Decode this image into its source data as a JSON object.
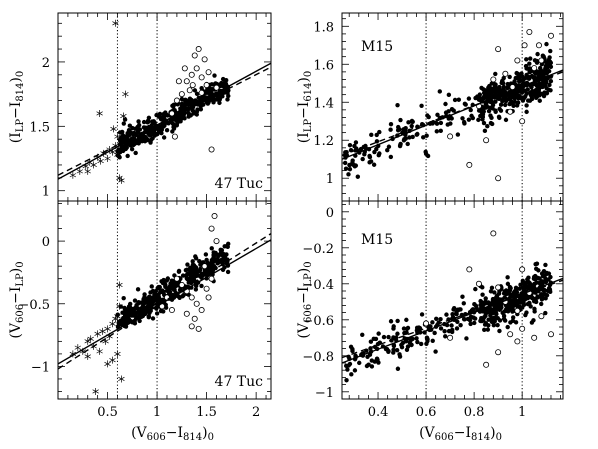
{
  "chart_data": [
    {
      "id": "tl",
      "type": "scatter",
      "annotation": "47 Tuc",
      "xlim": [
        0,
        2.15
      ],
      "ylim": [
        0.92,
        2.38
      ],
      "xticks": [
        0.5,
        1,
        1.5,
        2
      ],
      "yticks": [
        1,
        1.5,
        2
      ],
      "ylabel_main": "(I",
      "ylabel_sub1": "LP",
      "ylabel_mid": "−I",
      "ylabel_sub2": "814",
      "ylabel_end": ")",
      "ylabel_sub3": "0",
      "vlines": [
        0.6,
        1.0
      ],
      "fit_solid": [
        [
          0,
          1.09
        ],
        [
          2.15,
          1.99
        ]
      ],
      "fit_dashed": [
        [
          0,
          1.12
        ],
        [
          2.15,
          1.96
        ]
      ],
      "main": {
        "x0": 0.6,
        "x1": 1.72,
        "a": 1.09,
        "b": 0.42,
        "n": 420,
        "sd": 0.05,
        "seed": 11
      },
      "stars": [
        [
          0.15,
          1.12
        ],
        [
          0.22,
          1.15
        ],
        [
          0.28,
          1.19
        ],
        [
          0.32,
          1.22
        ],
        [
          0.36,
          1.2
        ],
        [
          0.4,
          1.26
        ],
        [
          0.43,
          1.23
        ],
        [
          0.46,
          1.29
        ],
        [
          0.5,
          1.25
        ],
        [
          0.52,
          1.32
        ],
        [
          0.55,
          1.3
        ],
        [
          0.58,
          1.35
        ],
        [
          0.6,
          1.42
        ],
        [
          0.56,
          1.48
        ],
        [
          0.62,
          1.1
        ],
        [
          0.66,
          1.58
        ],
        [
          0.42,
          1.6
        ],
        [
          0.58,
          2.3
        ],
        [
          0.68,
          1.75
        ],
        [
          0.64,
          1.08
        ],
        [
          0.3,
          1.15
        ],
        [
          0.6,
          1.28
        ]
      ],
      "open": [
        [
          1.25,
          1.75
        ],
        [
          1.3,
          1.85
        ],
        [
          1.35,
          1.9
        ],
        [
          1.38,
          2.05
        ],
        [
          1.4,
          1.95
        ],
        [
          1.42,
          2.1
        ],
        [
          1.45,
          1.88
        ],
        [
          1.48,
          2.02
        ],
        [
          1.5,
          1.82
        ],
        [
          1.33,
          1.78
        ],
        [
          1.28,
          1.95
        ],
        [
          1.52,
          1.92
        ],
        [
          1.2,
          1.7
        ],
        [
          1.6,
          1.8
        ],
        [
          1.55,
          1.32
        ],
        [
          1.15,
          1.6
        ],
        [
          1.22,
          1.85
        ],
        [
          1.45,
          1.76
        ],
        [
          1.36,
          1.82
        ],
        [
          1.18,
          1.42
        ]
      ]
    },
    {
      "id": "tr",
      "type": "scatter",
      "annotation": "M15",
      "xlim": [
        0.25,
        1.17
      ],
      "ylim": [
        0.88,
        1.87
      ],
      "xticks": [
        0.4,
        0.6,
        0.8,
        1
      ],
      "yticks": [
        1,
        1.2,
        1.4,
        1.6,
        1.8
      ],
      "ylabel_main": "(I",
      "ylabel_sub1": "LP",
      "ylabel_mid": "−I",
      "ylabel_sub2": "614",
      "ylabel_end": ")",
      "ylabel_sub3": "0",
      "vlines": [
        0.6,
        1.0
      ],
      "fit_solid": [
        [
          0.25,
          1.1
        ],
        [
          1.17,
          1.57
        ]
      ],
      "fit_dashed": [
        [
          0.25,
          1.12
        ],
        [
          1.17,
          1.56
        ]
      ],
      "main": {
        "x0": 0.26,
        "x1": 1.12,
        "a": 0.97,
        "b": 0.51,
        "n": 520,
        "sd": 0.055,
        "seed": 23,
        "dense_from": 0.82,
        "dense_frac": 0.55
      },
      "stars": [],
      "open": [
        [
          0.9,
          1.68
        ],
        [
          0.93,
          1.55
        ],
        [
          0.98,
          1.62
        ],
        [
          1.01,
          1.7
        ],
        [
          1.03,
          1.77
        ],
        [
          1.07,
          1.7
        ],
        [
          1.12,
          1.75
        ],
        [
          0.88,
          1.52
        ],
        [
          0.95,
          1.35
        ],
        [
          0.85,
          1.2
        ],
        [
          0.78,
          1.07
        ],
        [
          0.9,
          1.0
        ],
        [
          0.7,
          1.22
        ],
        [
          1.0,
          1.3
        ],
        [
          0.96,
          1.48
        ],
        [
          1.05,
          1.58
        ],
        [
          0.82,
          1.38
        ],
        [
          1.08,
          1.62
        ]
      ]
    },
    {
      "id": "bl",
      "type": "scatter",
      "annotation": "47 Tuc",
      "xlim": [
        0,
        2.15
      ],
      "ylim": [
        -1.26,
        0.32
      ],
      "xticks": [
        0.5,
        1,
        1.5,
        2
      ],
      "yticks": [
        -1,
        -0.5,
        0
      ],
      "xtick_labels": [
        "0.5",
        "1",
        "1.5",
        "2"
      ],
      "ytick_labels": [
        "−1",
        "−0.5",
        "0"
      ],
      "ylabel_main": "(V",
      "ylabel_sub1": "606",
      "ylabel_mid": "−I",
      "ylabel_sub2": "LP",
      "ylabel_end": ")",
      "ylabel_sub3": "0",
      "xlabel_main": "(V",
      "xlabel_sub1": "606",
      "xlabel_mid": "−I",
      "xlabel_sub2": "814",
      "xlabel_end": ")",
      "xlabel_sub3": "0",
      "vlines": [
        0.6,
        1.0
      ],
      "fit_solid": [
        [
          0,
          -0.98
        ],
        [
          2.15,
          0.01
        ]
      ],
      "fit_dashed": [
        [
          0,
          -1.02
        ],
        [
          2.15,
          0.06
        ]
      ],
      "main": {
        "x0": 0.6,
        "x1": 1.72,
        "a": -0.94,
        "b": 0.48,
        "n": 420,
        "sd": 0.055,
        "seed": 37
      },
      "stars": [
        [
          0.15,
          -0.9
        ],
        [
          0.2,
          -0.85
        ],
        [
          0.25,
          -0.88
        ],
        [
          0.3,
          -0.8
        ],
        [
          0.33,
          -0.78
        ],
        [
          0.36,
          -0.84
        ],
        [
          0.4,
          -0.74
        ],
        [
          0.42,
          -0.88
        ],
        [
          0.45,
          -0.72
        ],
        [
          0.48,
          -0.8
        ],
        [
          0.5,
          -0.7
        ],
        [
          0.52,
          -0.76
        ],
        [
          0.55,
          -0.66
        ],
        [
          0.58,
          -0.62
        ],
        [
          0.6,
          -0.6
        ],
        [
          0.62,
          -0.52
        ],
        [
          0.55,
          -0.95
        ],
        [
          0.6,
          -0.9
        ],
        [
          0.64,
          -1.1
        ],
        [
          0.38,
          -1.2
        ],
        [
          0.3,
          -0.92
        ],
        [
          0.5,
          -0.98
        ],
        [
          0.62,
          -0.35
        ]
      ],
      "open": [
        [
          1.2,
          -0.3
        ],
        [
          1.25,
          -0.35
        ],
        [
          1.3,
          -0.4
        ],
        [
          1.35,
          -0.45
        ],
        [
          1.4,
          -0.5
        ],
        [
          1.45,
          -0.55
        ],
        [
          1.5,
          -0.38
        ],
        [
          1.38,
          -0.62
        ],
        [
          1.42,
          -0.7
        ],
        [
          1.35,
          -0.68
        ],
        [
          1.48,
          -0.2
        ],
        [
          1.55,
          -0.3
        ],
        [
          1.6,
          0.0
        ],
        [
          1.58,
          0.2
        ],
        [
          1.55,
          0.1
        ],
        [
          1.05,
          -0.52
        ],
        [
          1.1,
          -0.45
        ],
        [
          1.15,
          -0.55
        ],
        [
          1.3,
          -0.58
        ],
        [
          1.52,
          -0.45
        ]
      ]
    },
    {
      "id": "br",
      "type": "scatter",
      "annotation": "M15",
      "xlim": [
        0.25,
        1.17
      ],
      "ylim": [
        -1.04,
        0.06
      ],
      "xticks": [
        0.4,
        0.6,
        0.8,
        1
      ],
      "yticks": [
        -1,
        -0.8,
        -0.6,
        -0.4,
        -0.2,
        0
      ],
      "xtick_labels": [
        "0.4",
        "0.6",
        "0.8",
        "1"
      ],
      "ytick_labels": [
        "−1",
        "−0.8",
        "−0.6",
        "−0.4",
        "−0.2",
        "0"
      ],
      "ylabel_main": "(V",
      "ylabel_sub1": "606",
      "ylabel_mid": "−I",
      "ylabel_sub2": "LP",
      "ylabel_end": ")",
      "ylabel_sub3": "0",
      "xlabel_main": "(V",
      "xlabel_sub1": "606",
      "xlabel_mid": "−I",
      "xlabel_sub2": "814",
      "xlabel_end": ")",
      "xlabel_sub3": "0",
      "vlines": [
        0.6,
        1.0
      ],
      "fit_solid": [
        [
          0.25,
          -0.84
        ],
        [
          1.17,
          -0.37
        ]
      ],
      "fit_dashed": [
        [
          0.25,
          -0.81
        ],
        [
          1.17,
          -0.38
        ]
      ],
      "main": {
        "x0": 0.26,
        "x1": 1.12,
        "a": -0.97,
        "b": 0.5,
        "n": 520,
        "sd": 0.055,
        "seed": 53,
        "dense_from": 0.82,
        "dense_frac": 0.55
      },
      "stars": [],
      "open": [
        [
          0.78,
          -0.32
        ],
        [
          0.88,
          -0.12
        ],
        [
          0.9,
          -0.42
        ],
        [
          0.93,
          -0.5
        ],
        [
          0.98,
          -0.55
        ],
        [
          1.0,
          -0.32
        ],
        [
          1.03,
          -0.45
        ],
        [
          1.08,
          -0.58
        ],
        [
          1.12,
          -0.68
        ],
        [
          0.85,
          -0.85
        ],
        [
          0.9,
          -0.78
        ],
        [
          0.98,
          -0.72
        ],
        [
          1.0,
          -0.65
        ],
        [
          0.7,
          -0.7
        ],
        [
          0.6,
          -0.62
        ],
        [
          0.82,
          -0.4
        ],
        [
          1.05,
          -0.7
        ],
        [
          0.95,
          -0.68
        ]
      ]
    }
  ]
}
